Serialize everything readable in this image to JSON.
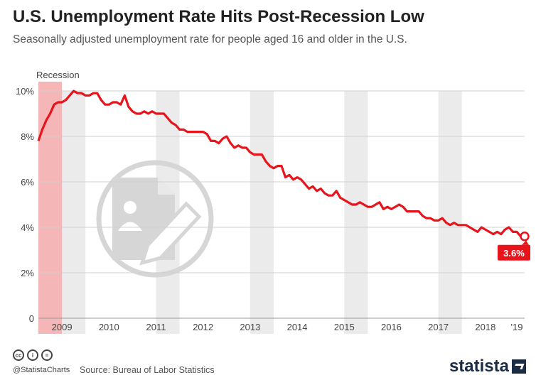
{
  "header": {
    "title": "U.S. Unemployment Rate Hits Post-Recession Low",
    "subtitle": "Seasonally adjusted unemployment rate for people aged 16 and older in the U.S."
  },
  "footer": {
    "handle": "@StatistaCharts",
    "source": "Source: Bureau of Labor Statistics",
    "brand": "statista",
    "license_icons": [
      "cc",
      "i",
      "="
    ]
  },
  "colors": {
    "line": "#e8141b",
    "recession": "#f4b6b6",
    "band": "#ebebeb",
    "brand": "#1b2d44"
  },
  "chart_data": {
    "type": "line",
    "title": "U.S. Unemployment Rate Hits Post-Recession Low",
    "xlabel": "",
    "ylabel": "",
    "ylim": [
      0,
      10
    ],
    "yticks": [
      "0",
      "2%",
      "4%",
      "6%",
      "8%",
      "10%"
    ],
    "xticks": [
      "2009",
      "2010",
      "2011",
      "2012",
      "2013",
      "2014",
      "2015",
      "2016",
      "2017",
      "2018",
      "'19"
    ],
    "xrange": [
      "2009-01",
      "2019-05"
    ],
    "recession_label": "Recession",
    "recession_period": [
      "2009-01",
      "2009-06"
    ],
    "grid": "alternating vertical bands",
    "end_label": "3.6%",
    "series": [
      {
        "values": [
          7.8,
          8.3,
          8.7,
          9.0,
          9.4,
          9.5,
          9.5,
          9.6,
          9.8,
          10.0,
          9.9,
          9.9,
          9.8,
          9.8,
          9.9,
          9.9,
          9.6,
          9.4,
          9.4,
          9.5,
          9.5,
          9.4,
          9.8,
          9.3,
          9.1,
          9.0,
          9.0,
          9.1,
          9.0,
          9.1,
          9.0,
          9.0,
          9.0,
          8.8,
          8.6,
          8.5,
          8.3,
          8.3,
          8.2,
          8.2,
          8.2,
          8.2,
          8.2,
          8.1,
          7.8,
          7.8,
          7.7,
          7.9,
          8.0,
          7.7,
          7.5,
          7.6,
          7.5,
          7.5,
          7.3,
          7.2,
          7.2,
          7.2,
          6.9,
          6.7,
          6.6,
          6.7,
          6.7,
          6.2,
          6.3,
          6.1,
          6.2,
          6.1,
          5.9,
          5.7,
          5.8,
          5.6,
          5.7,
          5.5,
          5.4,
          5.4,
          5.6,
          5.3,
          5.2,
          5.1,
          5.0,
          5.0,
          5.1,
          5.0,
          4.9,
          4.9,
          5.0,
          5.1,
          4.8,
          4.9,
          4.8,
          4.9,
          5.0,
          4.9,
          4.7,
          4.7,
          4.7,
          4.7,
          4.5,
          4.4,
          4.4,
          4.3,
          4.3,
          4.4,
          4.2,
          4.1,
          4.2,
          4.1,
          4.1,
          4.1,
          4.0,
          3.9,
          3.8,
          4.0,
          3.9,
          3.8,
          3.7,
          3.8,
          3.7,
          3.9,
          4.0,
          3.8,
          3.8,
          3.6,
          3.6
        ]
      }
    ]
  }
}
